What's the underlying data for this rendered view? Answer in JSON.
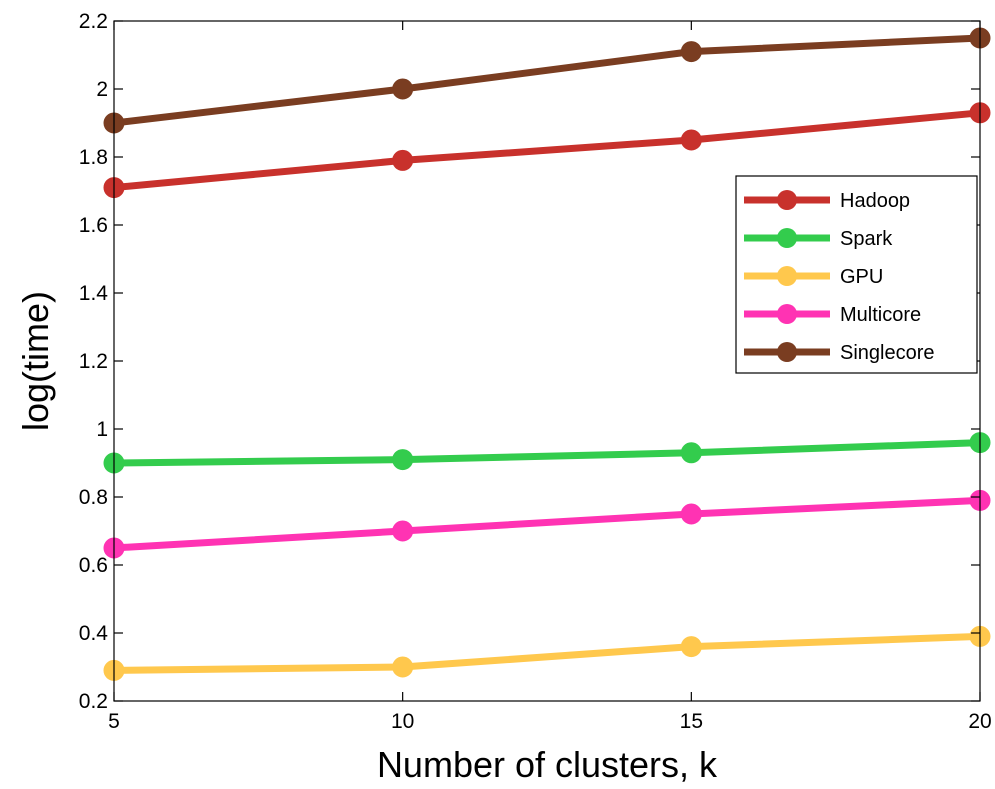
{
  "colors": {
    "Hadoop": "#c8312c",
    "Spark": "#33cc4d",
    "GPU": "#ffc84d",
    "Multicore": "#ff33b3",
    "Singlecore": "#7a3d21"
  },
  "chart_data": {
    "type": "line",
    "x": [
      5,
      10,
      15,
      20
    ],
    "series": [
      {
        "name": "Hadoop",
        "values": [
          1.71,
          1.79,
          1.85,
          1.93
        ]
      },
      {
        "name": "Spark",
        "values": [
          0.9,
          0.91,
          0.93,
          0.96
        ]
      },
      {
        "name": "GPU",
        "values": [
          0.29,
          0.3,
          0.36,
          0.39
        ]
      },
      {
        "name": "Multicore",
        "values": [
          0.65,
          0.7,
          0.75,
          0.79
        ]
      },
      {
        "name": "Singlecore",
        "values": [
          1.9,
          2.0,
          2.11,
          2.15
        ]
      }
    ],
    "title": "",
    "xlabel": "Number of clusters, k",
    "ylabel": "log(time)",
    "xlim": [
      5,
      20
    ],
    "ylim": [
      0.2,
      2.2
    ],
    "xticks": [
      "5",
      "10",
      "15",
      "20"
    ],
    "yticks": [
      "0.2",
      "0.4",
      "0.6",
      "0.8",
      "1",
      "1.2",
      "1.4",
      "1.6",
      "1.8",
      "2",
      "2.2"
    ],
    "grid": false,
    "legend_position": "top-right inside"
  }
}
